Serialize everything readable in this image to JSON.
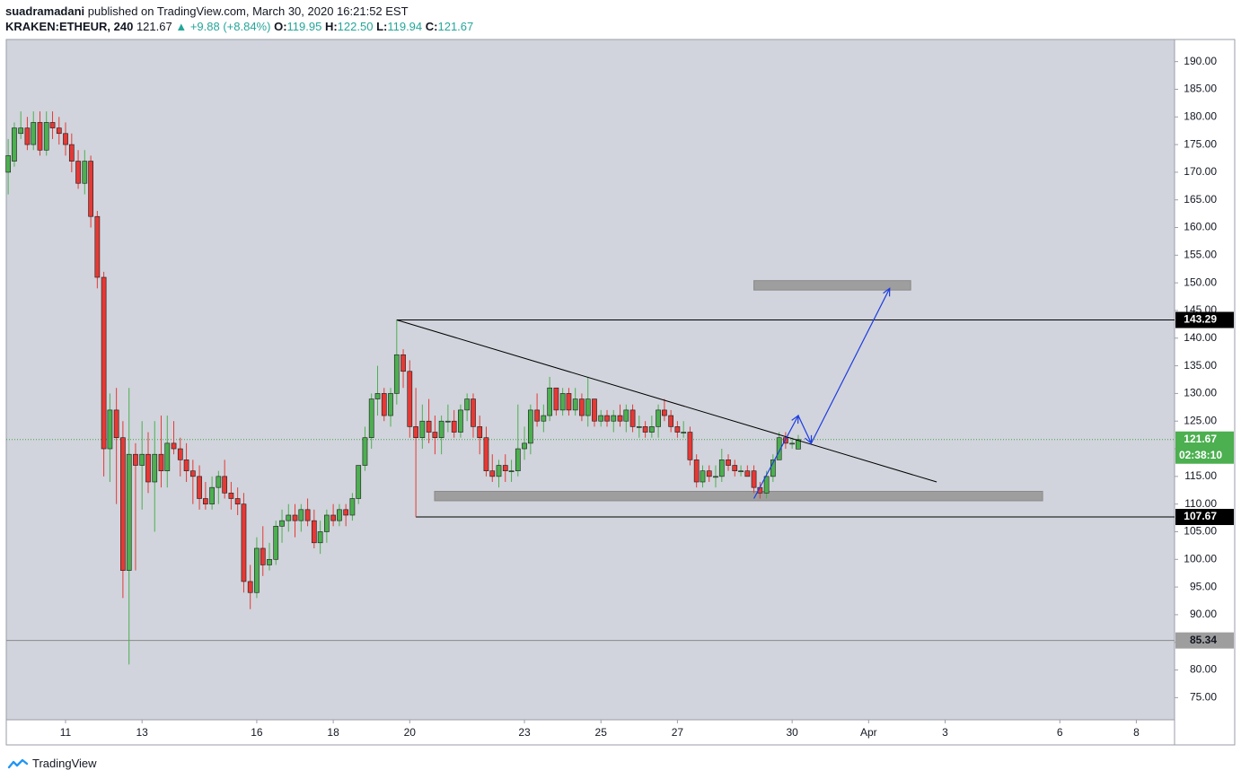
{
  "header": {
    "author": "suadramadani",
    "published_text": "published on TradingView.com, March 30, 2020 16:21:52 EST",
    "symbol": "KRAKEN:ETHEUR, 240",
    "last": "121.67",
    "change": "+9.88 (+8.84%)",
    "o_label": "O:",
    "o_value": "119.95",
    "h_label": "H:",
    "h_value": "122.50",
    "l_label": "L:",
    "l_value": "119.94",
    "c_label": "C:",
    "c_value": "121.67"
  },
  "footer": {
    "brand": "TradingView"
  },
  "colors": {
    "background": "#d1d4dc",
    "up": "#4caf50",
    "down": "#e53935",
    "zone": "#9e9e9e",
    "projection": "#1e3ce0",
    "price_tag": "#4caf50"
  },
  "chart_data": {
    "type": "candlestick",
    "ylim": [
      71,
      194
    ],
    "y_ticks": [
      "190.00",
      "185.00",
      "180.00",
      "175.00",
      "170.00",
      "165.00",
      "160.00",
      "155.00",
      "150.00",
      "145.00",
      "140.00",
      "135.00",
      "130.00",
      "125.00",
      "120.00",
      "115.00",
      "110.00",
      "105.00",
      "100.00",
      "95.00",
      "90.00",
      "85.00",
      "80.00",
      "75.00"
    ],
    "x_ticks": [
      {
        "label": "11",
        "x": 14.0
      },
      {
        "label": "13",
        "x": 16.0
      },
      {
        "label": "16",
        "x": 19.0
      },
      {
        "label": "18",
        "x": 21.0
      },
      {
        "label": "20",
        "x": 23.0
      },
      {
        "label": "23",
        "x": 26.0
      },
      {
        "label": "25",
        "x": 28.0
      },
      {
        "label": "27",
        "x": 30.0
      },
      {
        "label": "30",
        "x": 33.0
      },
      {
        "label": "Apr",
        "x": 35.0
      },
      {
        "label": "3",
        "x": 37.0
      },
      {
        "label": "6",
        "x": 40.0
      },
      {
        "label": "8",
        "x": 42.0
      }
    ],
    "x_range": [
      12.45,
      43.0
    ],
    "candles": [
      {
        "x": 12.5,
        "o": 170,
        "h": 176,
        "l": 166,
        "c": 173
      },
      {
        "x": 12.66,
        "o": 172,
        "h": 179,
        "l": 171,
        "c": 178
      },
      {
        "x": 12.83,
        "o": 177,
        "h": 181,
        "l": 176,
        "c": 178
      },
      {
        "x": 13.0,
        "o": 178,
        "h": 180,
        "l": 174,
        "c": 175
      },
      {
        "x": 13.16,
        "o": 175,
        "h": 181,
        "l": 174,
        "c": 179
      },
      {
        "x": 13.33,
        "o": 179,
        "h": 181,
        "l": 173,
        "c": 174
      },
      {
        "x": 13.5,
        "o": 174,
        "h": 181,
        "l": 173,
        "c": 179
      },
      {
        "x": 13.66,
        "o": 179,
        "h": 181,
        "l": 176,
        "c": 178
      },
      {
        "x": 13.83,
        "o": 178,
        "h": 180,
        "l": 175,
        "c": 177
      },
      {
        "x": 14.0,
        "o": 177,
        "h": 179,
        "l": 173,
        "c": 175
      },
      {
        "x": 14.16,
        "o": 175,
        "h": 177,
        "l": 170,
        "c": 172
      },
      {
        "x": 14.33,
        "o": 172,
        "h": 174,
        "l": 167,
        "c": 168
      },
      {
        "x": 14.5,
        "o": 168,
        "h": 174,
        "l": 166,
        "c": 172
      },
      {
        "x": 14.66,
        "o": 172,
        "h": 173,
        "l": 160,
        "c": 162
      },
      {
        "x": 14.83,
        "o": 162,
        "h": 163,
        "l": 149,
        "c": 151
      },
      {
        "x": 15.0,
        "o": 151,
        "h": 152,
        "l": 115,
        "c": 120
      },
      {
        "x": 15.16,
        "o": 120,
        "h": 130,
        "l": 114,
        "c": 127
      },
      {
        "x": 15.33,
        "o": 127,
        "h": 131,
        "l": 110,
        "c": 122
      },
      {
        "x": 15.5,
        "o": 122,
        "h": 125,
        "l": 93,
        "c": 98
      },
      {
        "x": 15.66,
        "o": 98,
        "h": 131,
        "l": 81,
        "c": 119
      },
      {
        "x": 15.83,
        "o": 119,
        "h": 121,
        "l": 98,
        "c": 117
      },
      {
        "x": 16.0,
        "o": 117,
        "h": 125,
        "l": 109,
        "c": 119
      },
      {
        "x": 16.16,
        "o": 119,
        "h": 123,
        "l": 112,
        "c": 114
      },
      {
        "x": 16.33,
        "o": 114,
        "h": 125,
        "l": 105,
        "c": 119
      },
      {
        "x": 16.5,
        "o": 119,
        "h": 126,
        "l": 113,
        "c": 116
      },
      {
        "x": 16.66,
        "o": 116,
        "h": 126,
        "l": 113,
        "c": 121
      },
      {
        "x": 16.83,
        "o": 121,
        "h": 125,
        "l": 119,
        "c": 120
      },
      {
        "x": 17.0,
        "o": 120,
        "h": 122,
        "l": 115,
        "c": 118
      },
      {
        "x": 17.16,
        "o": 118,
        "h": 121,
        "l": 114,
        "c": 116
      },
      {
        "x": 17.33,
        "o": 116,
        "h": 118,
        "l": 110,
        "c": 115
      },
      {
        "x": 17.5,
        "o": 115,
        "h": 117,
        "l": 109,
        "c": 111
      },
      {
        "x": 17.66,
        "o": 111,
        "h": 114,
        "l": 109,
        "c": 110
      },
      {
        "x": 17.83,
        "o": 110,
        "h": 115,
        "l": 109,
        "c": 113
      },
      {
        "x": 18.0,
        "o": 113,
        "h": 116,
        "l": 110,
        "c": 115
      },
      {
        "x": 18.16,
        "o": 115,
        "h": 118,
        "l": 111,
        "c": 112
      },
      {
        "x": 18.33,
        "o": 112,
        "h": 114,
        "l": 109,
        "c": 111
      },
      {
        "x": 18.5,
        "o": 111,
        "h": 113,
        "l": 108,
        "c": 110
      },
      {
        "x": 18.66,
        "o": 110,
        "h": 112,
        "l": 94,
        "c": 96
      },
      {
        "x": 18.83,
        "o": 96,
        "h": 99,
        "l": 91,
        "c": 94
      },
      {
        "x": 19.0,
        "o": 94,
        "h": 104,
        "l": 93,
        "c": 102
      },
      {
        "x": 19.16,
        "o": 102,
        "h": 106,
        "l": 97,
        "c": 99
      },
      {
        "x": 19.33,
        "o": 99,
        "h": 103,
        "l": 98,
        "c": 100
      },
      {
        "x": 19.5,
        "o": 100,
        "h": 107,
        "l": 99,
        "c": 106
      },
      {
        "x": 19.66,
        "o": 106,
        "h": 109,
        "l": 103,
        "c": 107
      },
      {
        "x": 19.83,
        "o": 107,
        "h": 110,
        "l": 105,
        "c": 108
      },
      {
        "x": 20.0,
        "o": 108,
        "h": 110,
        "l": 104,
        "c": 107
      },
      {
        "x": 20.16,
        "o": 107,
        "h": 110,
        "l": 105,
        "c": 109
      },
      {
        "x": 20.33,
        "o": 109,
        "h": 111,
        "l": 106,
        "c": 107
      },
      {
        "x": 20.5,
        "o": 107,
        "h": 109,
        "l": 102,
        "c": 103
      },
      {
        "x": 20.66,
        "o": 103,
        "h": 107,
        "l": 101,
        "c": 105
      },
      {
        "x": 20.83,
        "o": 105,
        "h": 109,
        "l": 103,
        "c": 108
      },
      {
        "x": 21.0,
        "o": 108,
        "h": 110,
        "l": 106,
        "c": 107
      },
      {
        "x": 21.16,
        "o": 107,
        "h": 110,
        "l": 106,
        "c": 109
      },
      {
        "x": 21.33,
        "o": 109,
        "h": 110,
        "l": 106,
        "c": 108
      },
      {
        "x": 21.5,
        "o": 108,
        "h": 112,
        "l": 107,
        "c": 111
      },
      {
        "x": 21.66,
        "o": 111,
        "h": 117,
        "l": 110,
        "c": 117
      },
      {
        "x": 21.83,
        "o": 117,
        "h": 124,
        "l": 116,
        "c": 122
      },
      {
        "x": 22.0,
        "o": 122,
        "h": 130,
        "l": 120,
        "c": 129
      },
      {
        "x": 22.16,
        "o": 129,
        "h": 135,
        "l": 126,
        "c": 130
      },
      {
        "x": 22.33,
        "o": 130,
        "h": 131,
        "l": 125,
        "c": 126
      },
      {
        "x": 22.5,
        "o": 126,
        "h": 131,
        "l": 124,
        "c": 130
      },
      {
        "x": 22.66,
        "o": 130,
        "h": 143.3,
        "l": 128,
        "c": 137
      },
      {
        "x": 22.83,
        "o": 137,
        "h": 138,
        "l": 131,
        "c": 134
      },
      {
        "x": 23.0,
        "o": 134,
        "h": 136,
        "l": 122,
        "c": 124
      },
      {
        "x": 23.16,
        "o": 124,
        "h": 131,
        "l": 107.7,
        "c": 122
      },
      {
        "x": 23.33,
        "o": 122,
        "h": 128,
        "l": 120,
        "c": 125
      },
      {
        "x": 23.5,
        "o": 125,
        "h": 129,
        "l": 121,
        "c": 123
      },
      {
        "x": 23.66,
        "o": 123,
        "h": 126,
        "l": 119,
        "c": 122
      },
      {
        "x": 23.83,
        "o": 122,
        "h": 126,
        "l": 119,
        "c": 125
      },
      {
        "x": 24.0,
        "o": 125,
        "h": 128,
        "l": 123,
        "c": 125
      },
      {
        "x": 24.16,
        "o": 125,
        "h": 127,
        "l": 122,
        "c": 123
      },
      {
        "x": 24.33,
        "o": 123,
        "h": 128,
        "l": 122,
        "c": 127
      },
      {
        "x": 24.5,
        "o": 127,
        "h": 130,
        "l": 125,
        "c": 129
      },
      {
        "x": 24.66,
        "o": 129,
        "h": 130,
        "l": 122,
        "c": 124
      },
      {
        "x": 24.83,
        "o": 124,
        "h": 126,
        "l": 119,
        "c": 122
      },
      {
        "x": 25.0,
        "o": 122,
        "h": 124,
        "l": 115,
        "c": 116
      },
      {
        "x": 25.16,
        "o": 116,
        "h": 119,
        "l": 114,
        "c": 115
      },
      {
        "x": 25.33,
        "o": 115,
        "h": 118,
        "l": 113,
        "c": 117
      },
      {
        "x": 25.5,
        "o": 117,
        "h": 119,
        "l": 114,
        "c": 116
      },
      {
        "x": 25.66,
        "o": 116,
        "h": 118,
        "l": 114,
        "c": 116
      },
      {
        "x": 25.83,
        "o": 116,
        "h": 128,
        "l": 115,
        "c": 120
      },
      {
        "x": 26.0,
        "o": 120,
        "h": 124,
        "l": 118,
        "c": 121
      },
      {
        "x": 26.16,
        "o": 121,
        "h": 128,
        "l": 119,
        "c": 127
      },
      {
        "x": 26.33,
        "o": 127,
        "h": 130,
        "l": 124,
        "c": 125
      },
      {
        "x": 26.5,
        "o": 125,
        "h": 128,
        "l": 123,
        "c": 126
      },
      {
        "x": 26.66,
        "o": 126,
        "h": 133,
        "l": 125,
        "c": 131
      },
      {
        "x": 26.83,
        "o": 131,
        "h": 131,
        "l": 126,
        "c": 127
      },
      {
        "x": 27.0,
        "o": 127,
        "h": 131,
        "l": 126,
        "c": 130
      },
      {
        "x": 27.16,
        "o": 130,
        "h": 131,
        "l": 126,
        "c": 127
      },
      {
        "x": 27.33,
        "o": 127,
        "h": 131,
        "l": 126,
        "c": 129
      },
      {
        "x": 27.5,
        "o": 129,
        "h": 130,
        "l": 125,
        "c": 126
      },
      {
        "x": 27.66,
        "o": 126,
        "h": 133,
        "l": 124,
        "c": 129
      },
      {
        "x": 27.83,
        "o": 129,
        "h": 129,
        "l": 124,
        "c": 125
      },
      {
        "x": 28.0,
        "o": 125,
        "h": 127,
        "l": 124,
        "c": 126
      },
      {
        "x": 28.16,
        "o": 126,
        "h": 127,
        "l": 124,
        "c": 125
      },
      {
        "x": 28.33,
        "o": 125,
        "h": 127,
        "l": 123,
        "c": 126
      },
      {
        "x": 28.5,
        "o": 126,
        "h": 128,
        "l": 124,
        "c": 125
      },
      {
        "x": 28.66,
        "o": 125,
        "h": 128,
        "l": 123,
        "c": 127
      },
      {
        "x": 28.83,
        "o": 127,
        "h": 128,
        "l": 123,
        "c": 124
      },
      {
        "x": 29.0,
        "o": 124,
        "h": 126,
        "l": 122,
        "c": 124
      },
      {
        "x": 29.16,
        "o": 124,
        "h": 125,
        "l": 122,
        "c": 123
      },
      {
        "x": 29.33,
        "o": 123,
        "h": 126,
        "l": 122,
        "c": 124
      },
      {
        "x": 29.5,
        "o": 124,
        "h": 128,
        "l": 122,
        "c": 127
      },
      {
        "x": 29.66,
        "o": 127,
        "h": 129,
        "l": 125,
        "c": 126
      },
      {
        "x": 29.83,
        "o": 126,
        "h": 127,
        "l": 123,
        "c": 124
      },
      {
        "x": 30.0,
        "o": 124,
        "h": 125,
        "l": 122,
        "c": 123
      },
      {
        "x": 30.16,
        "o": 123,
        "h": 125,
        "l": 122,
        "c": 123
      },
      {
        "x": 30.33,
        "o": 123,
        "h": 124,
        "l": 117,
        "c": 118
      },
      {
        "x": 30.5,
        "o": 118,
        "h": 119,
        "l": 113,
        "c": 114
      },
      {
        "x": 30.66,
        "o": 114,
        "h": 117,
        "l": 113,
        "c": 116
      },
      {
        "x": 30.83,
        "o": 116,
        "h": 117,
        "l": 114,
        "c": 115
      },
      {
        "x": 31.0,
        "o": 115,
        "h": 117,
        "l": 113,
        "c": 115
      },
      {
        "x": 31.16,
        "o": 115,
        "h": 120,
        "l": 114,
        "c": 118
      },
      {
        "x": 31.33,
        "o": 118,
        "h": 119,
        "l": 116,
        "c": 117
      },
      {
        "x": 31.5,
        "o": 117,
        "h": 118,
        "l": 115,
        "c": 116
      },
      {
        "x": 31.66,
        "o": 116,
        "h": 117,
        "l": 115,
        "c": 116
      },
      {
        "x": 31.83,
        "o": 116,
        "h": 117,
        "l": 115,
        "c": 115
      },
      {
        "x": 32.0,
        "o": 116,
        "h": 117,
        "l": 112,
        "c": 113
      },
      {
        "x": 32.16,
        "o": 113,
        "h": 114,
        "l": 111,
        "c": 112
      },
      {
        "x": 32.33,
        "o": 112,
        "h": 116,
        "l": 111,
        "c": 115
      },
      {
        "x": 32.5,
        "o": 115,
        "h": 119,
        "l": 114,
        "c": 118
      },
      {
        "x": 32.66,
        "o": 118,
        "h": 123,
        "l": 118,
        "c": 122
      },
      {
        "x": 32.83,
        "o": 122,
        "h": 123,
        "l": 120,
        "c": 121
      },
      {
        "x": 33.0,
        "o": 121,
        "h": 122,
        "l": 120,
        "c": 121
      },
      {
        "x": 33.16,
        "o": 119.95,
        "h": 122.5,
        "l": 119.94,
        "c": 121.67
      }
    ],
    "levels": [
      {
        "value": 143.29,
        "label": "143.29",
        "from_x": 22.66,
        "tag_bg": "#000000",
        "tag_fg": "#ffffff",
        "line": "#000000"
      },
      {
        "value": 107.67,
        "label": "107.67",
        "from_x": 23.16,
        "tag_bg": "#000000",
        "tag_fg": "#ffffff",
        "line": "#000000"
      },
      {
        "value": 85.34,
        "label": "85.34",
        "from_x": 12.45,
        "tag_bg": "#9e9e9e",
        "tag_fg": "#131722",
        "line": "#8a8a8a"
      }
    ],
    "current_price": {
      "value": 121.67,
      "label": "121.67",
      "countdown": "02:38:10"
    },
    "zones": [
      {
        "x1": 32.0,
        "x2": 36.1,
        "y_low": 148.7,
        "y_high": 150.4
      },
      {
        "x1": 23.65,
        "x2": 39.55,
        "y_low": 110.6,
        "y_high": 112.3
      }
    ],
    "trendline": {
      "x1": 22.66,
      "y1": 143.29,
      "x2": 36.78,
      "y2": 114.0
    },
    "projection": [
      {
        "x": 32.0,
        "y": 111.0
      },
      {
        "x": 33.16,
        "y": 126.0
      },
      {
        "x": 33.5,
        "y": 121.0
      },
      {
        "x": 35.55,
        "y": 149.0
      }
    ]
  }
}
